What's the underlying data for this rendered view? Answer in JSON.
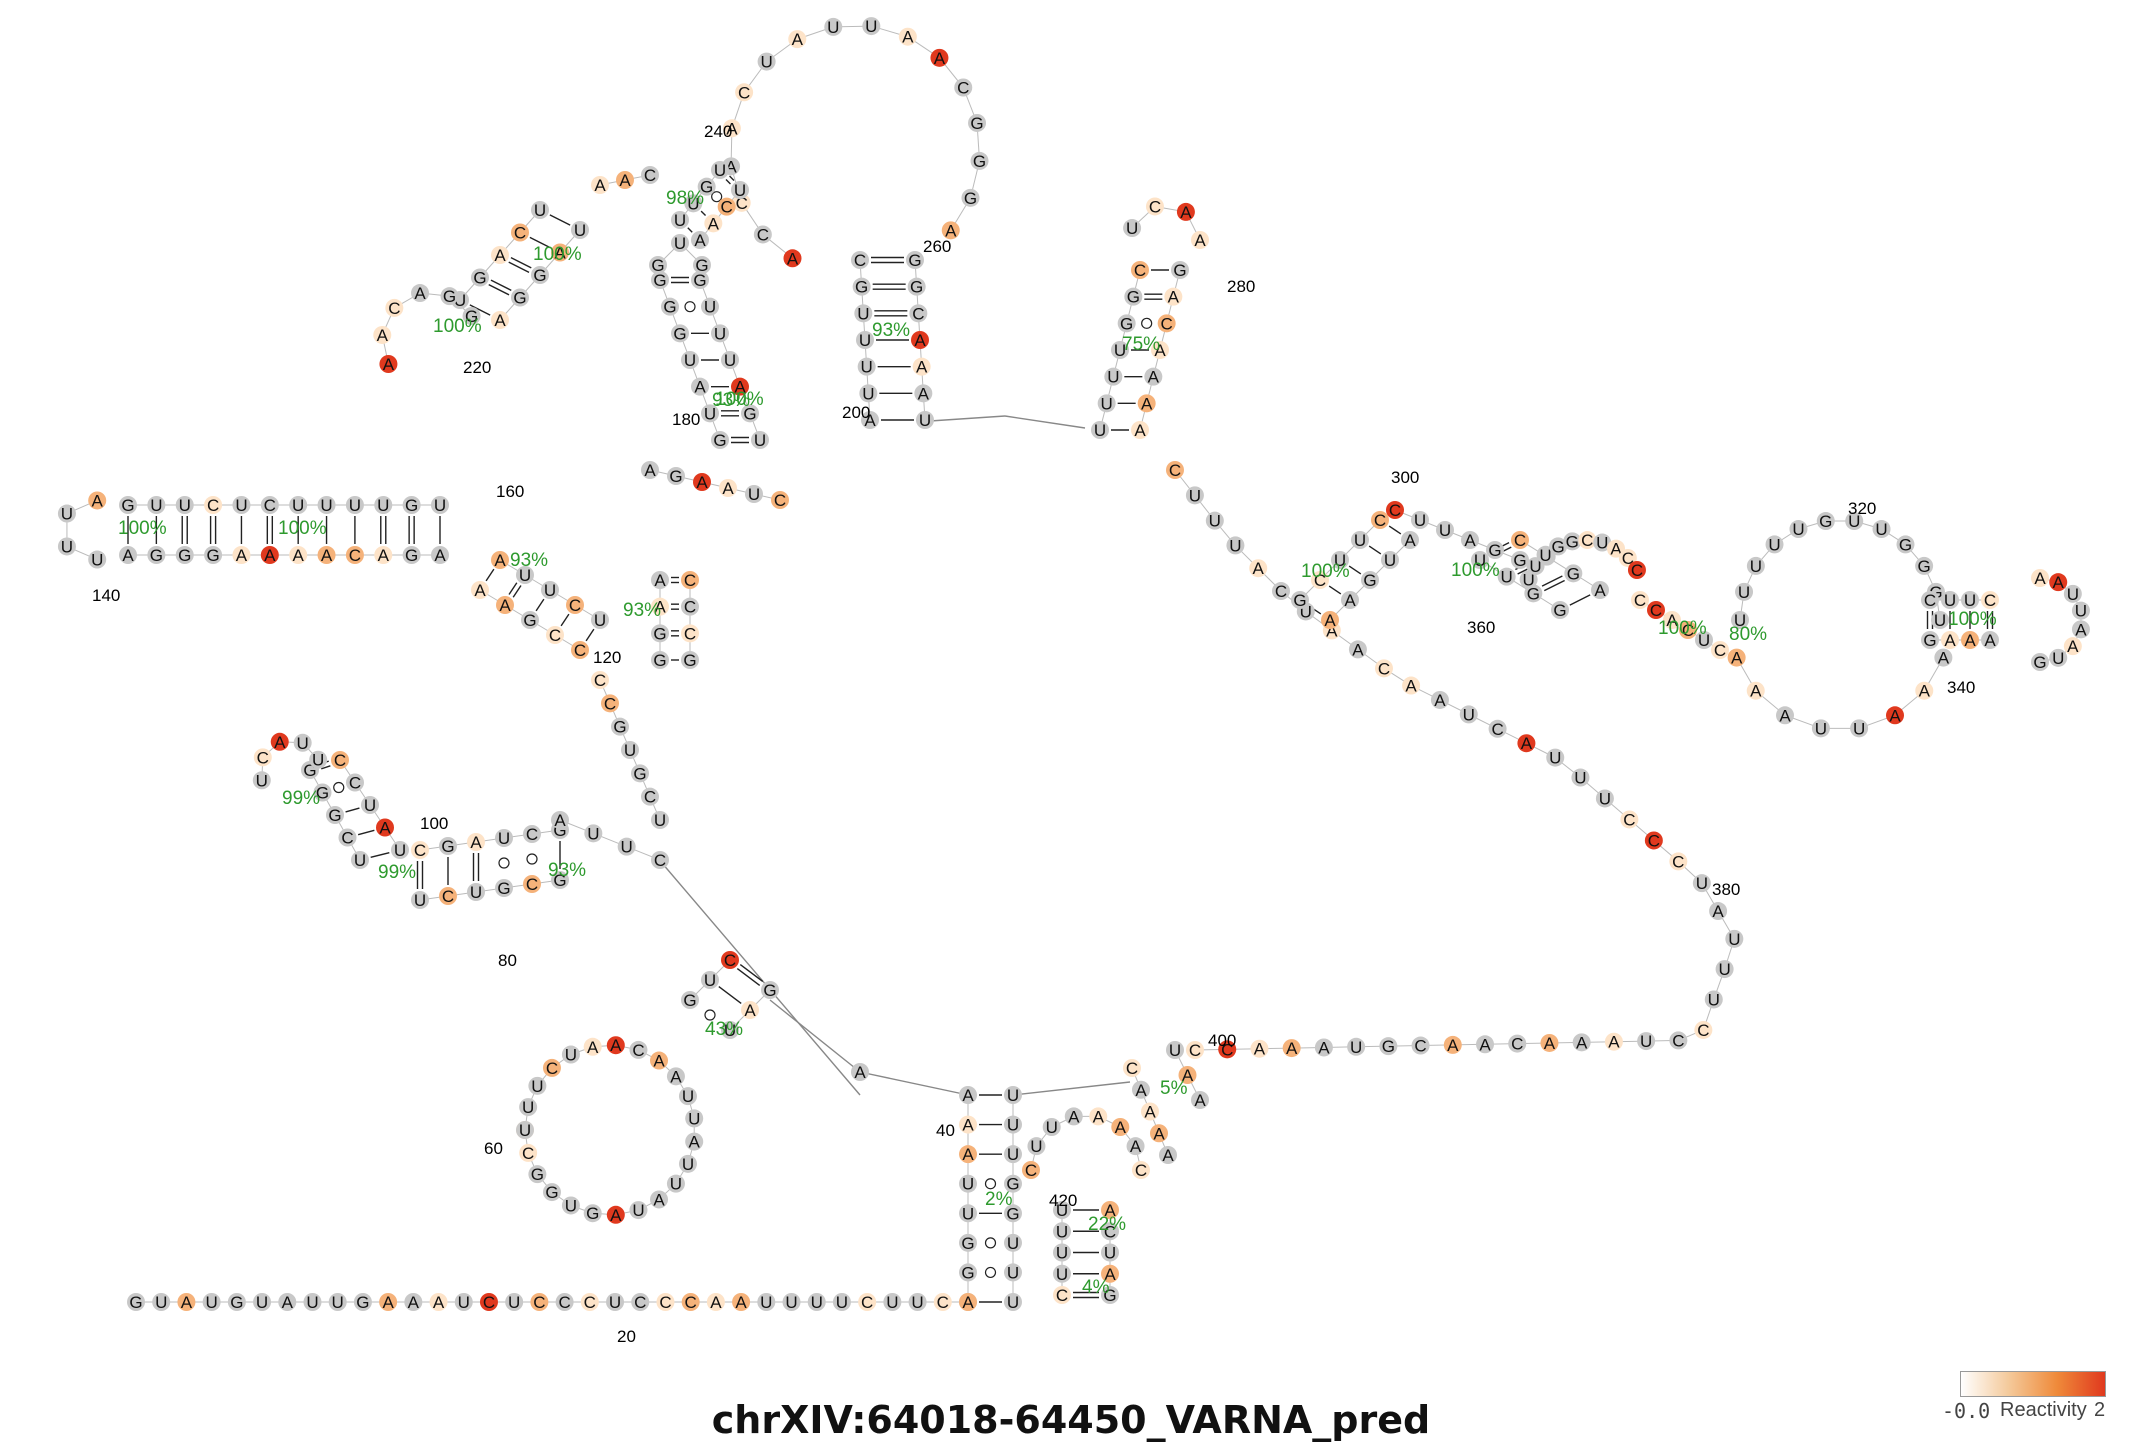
{
  "title": "chrXIV:64018-64450_VARNA_pred",
  "legend": {
    "min_label": "-0.0",
    "label": "Reactivity",
    "max_label": "2"
  },
  "colors": {
    "unmapped": "#c8c8c8",
    "low": "#fde3c8",
    "mid": "#f5b27a",
    "high": "#e0391e",
    "percent_text": "#2e9a2e",
    "backbone": "#888888"
  },
  "tail_5prime": "GUAUGUAUUGAAAUCUCCCUCCCAAUUUUCUUCA",
  "arc_nucleotides": [
    "C",
    "C",
    "A",
    "A",
    "A",
    "U",
    "G",
    "C",
    "A",
    "A",
    "C",
    "A",
    "A",
    "A",
    "U",
    "C",
    "C",
    "U",
    "U",
    "U",
    "A",
    "U",
    "C",
    "C",
    "C",
    "U",
    "U",
    "U",
    "A",
    "C",
    "U",
    "A",
    "A",
    "C",
    "A",
    "A",
    "U",
    "C",
    "A",
    "U",
    "U",
    "U",
    "C"
  ],
  "numbers": [
    "20",
    "40",
    "60",
    "80",
    "100",
    "120",
    "140",
    "160",
    "180",
    "200",
    "220",
    "240",
    "260",
    "280",
    "300",
    "320",
    "340",
    "360",
    "380",
    "400",
    "420"
  ],
  "percents": [
    "2%",
    "4%",
    "5%",
    "22%",
    "43%",
    "93%",
    "99%",
    "99%",
    "93%",
    "93%",
    "100%",
    "100%",
    "93%",
    "100%",
    "100%",
    "100%",
    "98%",
    "93%",
    "75%",
    "100%",
    "100%",
    "100%",
    "80%",
    "100%"
  ]
}
